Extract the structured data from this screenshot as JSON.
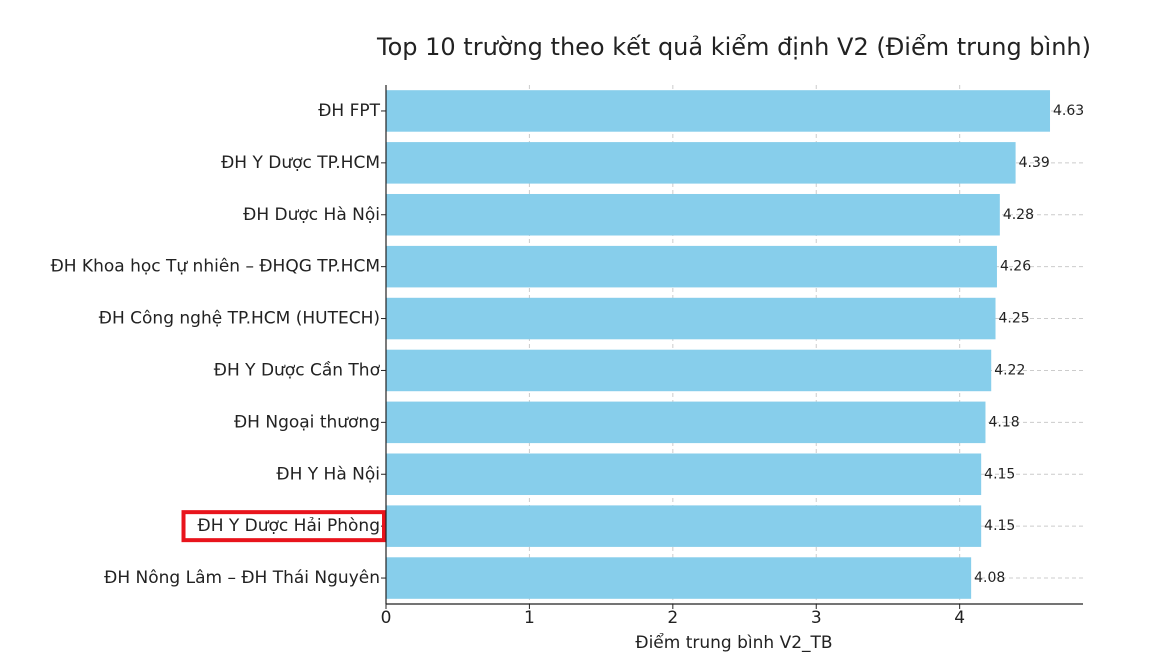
{
  "chart_data": {
    "type": "bar",
    "orientation": "horizontal",
    "title": "Top 10 trường theo kết quả kiểm định V2 (Điểm trung bình)",
    "x_label": "Điểm trung bình V2_TB",
    "categories": [
      "ĐH FPT",
      "ĐH Y Dược TP.HCM",
      "ĐH Dược Hà Nội",
      "ĐH Khoa học Tự nhiên – ĐHQG TP.HCM",
      "ĐH Công nghệ TP.HCM (HUTECH)",
      "ĐH Y Dược Cần Thơ",
      "ĐH Ngoại thương",
      "ĐH Y Hà Nội",
      "ĐH Y Dược Hải Phòng",
      "ĐH Nông Lâm – ĐH Thái Nguyên"
    ],
    "values": [
      4.63,
      4.39,
      4.28,
      4.26,
      4.25,
      4.22,
      4.18,
      4.15,
      4.15,
      4.08
    ],
    "color": "#87ceeb",
    "xlim": [
      0,
      4.86
    ],
    "xticks": [
      0,
      1,
      2,
      3,
      4
    ],
    "grid": true,
    "highlight": {
      "index": 8,
      "color": "#e8141c"
    }
  }
}
